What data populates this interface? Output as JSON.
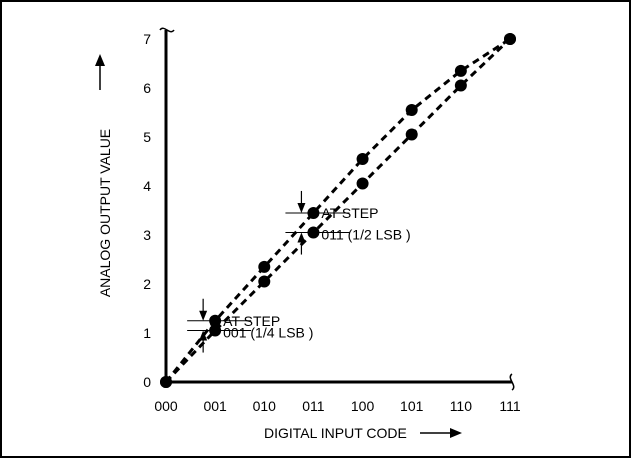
{
  "chart_data": {
    "type": "scatter",
    "xlabel": "DIGITAL INPUT CODE",
    "ylabel": "ANALOG OUTPUT VALUE",
    "x_tick_labels": [
      "000",
      "001",
      "010",
      "011",
      "100",
      "101",
      "110",
      "111"
    ],
    "y_tick_labels": [
      "0",
      "1",
      "2",
      "3",
      "4",
      "5",
      "6",
      "7"
    ],
    "xlim": [
      0,
      7
    ],
    "ylim": [
      0,
      7
    ],
    "grid": false,
    "series": [
      {
        "values": [
          0,
          1.25,
          2.35,
          3.45,
          4.55,
          5.55,
          6.35,
          7.0
        ]
      },
      {
        "values": [
          0,
          1.05,
          2.05,
          3.05,
          4.05,
          5.05,
          6.05,
          7.0
        ]
      }
    ],
    "annotations": [
      {
        "line1": "AT STEP",
        "line2": "001 (1/4 LSB )",
        "x": 1,
        "y_top": 1.25,
        "y_bottom": 1.05
      },
      {
        "line1": "AT STEP",
        "line2": "011 (1/2 LSB )",
        "x": 3,
        "y_top": 3.45,
        "y_bottom": 3.05
      }
    ],
    "colors": {
      "ink": "#000000",
      "frame": "#000000"
    }
  }
}
